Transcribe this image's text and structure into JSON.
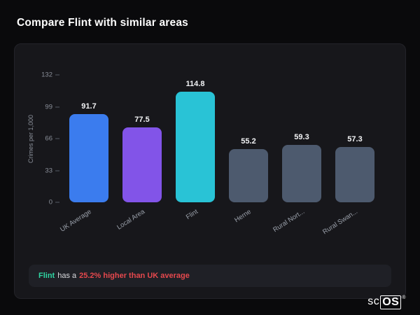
{
  "header": {
    "title": "Compare Flint with similar areas"
  },
  "chart_data": {
    "type": "bar",
    "title": "",
    "ylabel": "Crimes per 1,000",
    "categories": [
      "UK Average",
      "Local Area",
      "Flint",
      "Herne",
      "Rural Nort...",
      "Rural Swan..."
    ],
    "values": [
      91.7,
      77.5,
      114.8,
      55.2,
      59.3,
      57.3
    ],
    "bar_colors": [
      "#3b7cee",
      "#8254e8",
      "#29c3d6",
      "#4d5a6e",
      "#4d5a6e",
      "#4d5a6e"
    ],
    "yticks": [
      0,
      33,
      66,
      99,
      132
    ],
    "ylim": [
      0,
      132
    ],
    "grid": false,
    "legend": false
  },
  "note": {
    "area_label": "Flint",
    "text_middle": "has a",
    "highlight": "25.2% higher than UK average"
  },
  "logo": {
    "prefix": "sc",
    "boxed": "OS",
    "registered": "®"
  },
  "colors": {
    "background": "#0a0a0c",
    "card": "#17171b",
    "accent_flint": "#2fd6a3",
    "highlight_red": "#e5484d",
    "bar_blue": "#3b7cee",
    "bar_purple": "#8254e8",
    "bar_cyan": "#29c3d6",
    "bar_gray": "#4d5a6e"
  }
}
